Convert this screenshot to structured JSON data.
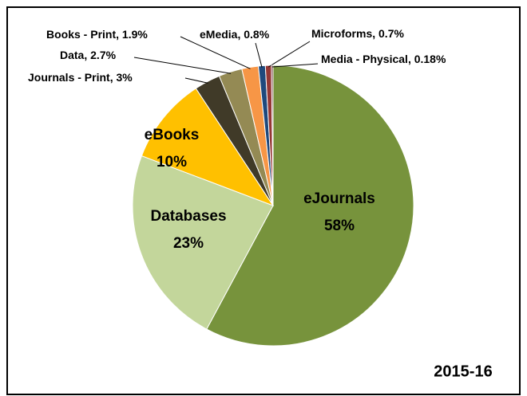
{
  "chart_data": {
    "type": "pie",
    "title": "2015-16",
    "categories": [
      "eJournals",
      "Databases",
      "eBooks",
      "Journals - Print",
      "Data",
      "Books - Print",
      "eMedia",
      "Microforms",
      "Media - Physical"
    ],
    "values": [
      58,
      23,
      10,
      3,
      2.7,
      1.9,
      0.8,
      0.7,
      0.18
    ],
    "value_labels": [
      "58%",
      "23%",
      "10%",
      "3%",
      "2.7%",
      "1.9%",
      "0.8%",
      "0.7%",
      "0.18%"
    ],
    "label_separator": ", ",
    "colors": [
      "#77933c",
      "#c3d69b",
      "#ffc000",
      "#403a28",
      "#948a54",
      "#f79646",
      "#1f497d",
      "#953735",
      "#632523"
    ],
    "start_angle": 0,
    "direction": "clockwise"
  }
}
